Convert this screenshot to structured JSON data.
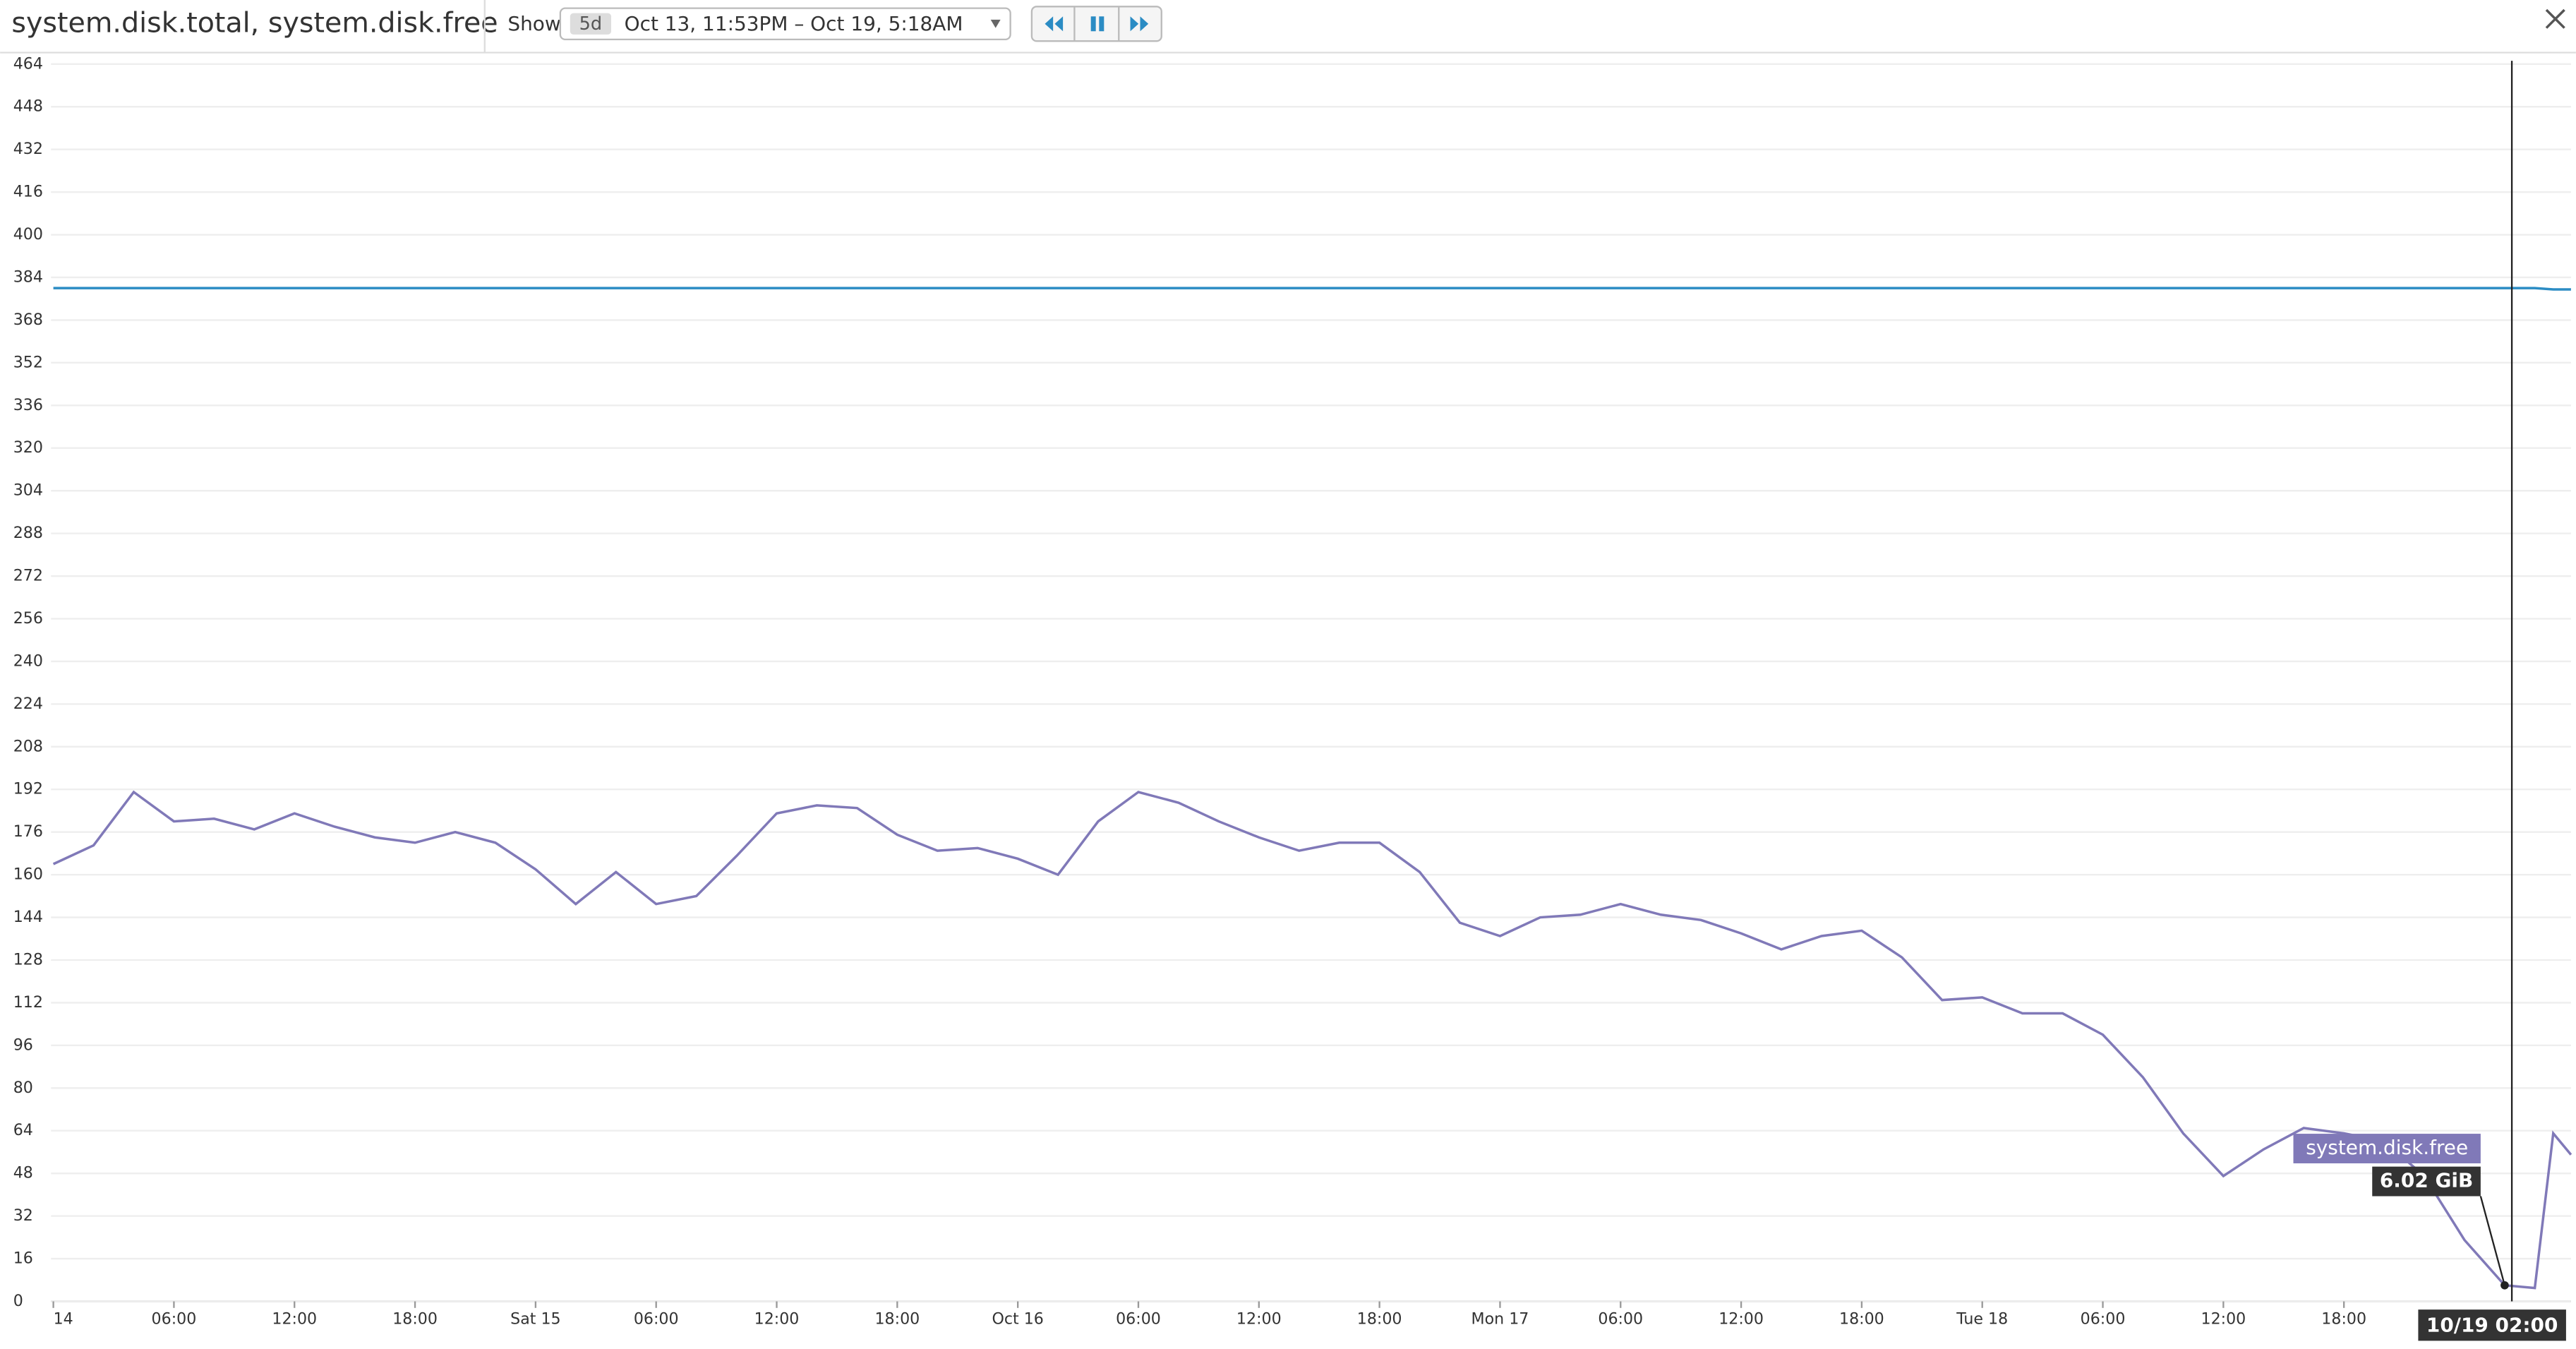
{
  "header": {
    "title": "system.disk.total, system.disk.free",
    "show_label": "Show",
    "range_badge": "5d",
    "range": "Oct 13, 11:53PM – Oct 19, 5:18AM"
  },
  "chart_data": {
    "type": "line",
    "x": [
      "10/14 00:00",
      "10/14 02:00",
      "10/14 04:00",
      "10/14 06:00",
      "10/14 08:00",
      "10/14 10:00",
      "10/14 12:00",
      "10/14 14:00",
      "10/14 16:00",
      "10/14 18:00",
      "10/14 20:00",
      "10/14 22:00",
      "10/15 00:00",
      "10/15 02:00",
      "10/15 04:00",
      "10/15 06:00",
      "10/15 08:00",
      "10/15 10:00",
      "10/15 12:00",
      "10/15 14:00",
      "10/15 16:00",
      "10/15 18:00",
      "10/15 20:00",
      "10/15 22:00",
      "10/16 00:00",
      "10/16 02:00",
      "10/16 04:00",
      "10/16 06:00",
      "10/16 08:00",
      "10/16 10:00",
      "10/16 12:00",
      "10/16 14:00",
      "10/16 16:00",
      "10/16 18:00",
      "10/16 20:00",
      "10/16 22:00",
      "10/17 00:00",
      "10/17 02:00",
      "10/17 04:00",
      "10/17 06:00",
      "10/17 08:00",
      "10/17 10:00",
      "10/17 12:00",
      "10/17 14:00",
      "10/17 16:00",
      "10/17 18:00",
      "10/17 20:00",
      "10/17 22:00",
      "10/18 00:00",
      "10/18 02:00",
      "10/18 04:00",
      "10/18 06:00",
      "10/18 08:00",
      "10/18 10:00",
      "10/18 12:00",
      "10/18 14:00",
      "10/18 16:00",
      "10/18 18:00",
      "10/18 20:00",
      "10/18 22:00",
      "10/19 00:00",
      "10/19 02:00",
      "10/19 03:30",
      "10/19 04:25",
      "10/19 05:18"
    ],
    "series": [
      {
        "name": "system.disk.total",
        "color": "#2b8cc4",
        "values": [
          380,
          380,
          380,
          380,
          380,
          380,
          380,
          380,
          380,
          380,
          380,
          380,
          380,
          380,
          380,
          380,
          380,
          380,
          380,
          380,
          380,
          380,
          380,
          380,
          380,
          380,
          380,
          380,
          380,
          380,
          380,
          380,
          380,
          380,
          380,
          380,
          380,
          380,
          380,
          380,
          380,
          380,
          380,
          380,
          380,
          380,
          380,
          380,
          380,
          380,
          380,
          380,
          380,
          380,
          380,
          380,
          380,
          380,
          380,
          380,
          380,
          380,
          380,
          379.5,
          379.5
        ]
      },
      {
        "name": "system.disk.free",
        "color": "#8079b8",
        "values": [
          164,
          171,
          191,
          180,
          181,
          177,
          183,
          178,
          174,
          172,
          176,
          172,
          162,
          149,
          161,
          149,
          152,
          167,
          183,
          186,
          185,
          175,
          169,
          170,
          166,
          160,
          180,
          191,
          187,
          180,
          174,
          169,
          172,
          172,
          161,
          142,
          137,
          144,
          145,
          149,
          145,
          143,
          138,
          132,
          137,
          139,
          129,
          113,
          114,
          108,
          108,
          100,
          84,
          63,
          47,
          57,
          65,
          63,
          60,
          47,
          23,
          6.02,
          5,
          63,
          55
        ]
      }
    ],
    "xlim": [
      "10/13 23:53",
      "10/19 05:18"
    ],
    "xticks": [
      {
        "value": "10/14 00:00",
        "label": "14"
      },
      {
        "value": "10/14 06:00",
        "label": "06:00"
      },
      {
        "value": "10/14 12:00",
        "label": "12:00"
      },
      {
        "value": "10/14 18:00",
        "label": "18:00"
      },
      {
        "value": "10/15 00:00",
        "label": "Sat 15"
      },
      {
        "value": "10/15 06:00",
        "label": "06:00"
      },
      {
        "value": "10/15 12:00",
        "label": "12:00"
      },
      {
        "value": "10/15 18:00",
        "label": "18:00"
      },
      {
        "value": "10/16 00:00",
        "label": "Oct 16"
      },
      {
        "value": "10/16 06:00",
        "label": "06:00"
      },
      {
        "value": "10/16 12:00",
        "label": "12:00"
      },
      {
        "value": "10/16 18:00",
        "label": "18:00"
      },
      {
        "value": "10/17 00:00",
        "label": "Mon 17"
      },
      {
        "value": "10/17 06:00",
        "label": "06:00"
      },
      {
        "value": "10/17 12:00",
        "label": "12:00"
      },
      {
        "value": "10/17 18:00",
        "label": "18:00"
      },
      {
        "value": "10/18 00:00",
        "label": "Tue 18"
      },
      {
        "value": "10/18 06:00",
        "label": "06:00"
      },
      {
        "value": "10/18 12:00",
        "label": "12:00"
      },
      {
        "value": "10/18 18:00",
        "label": "18:00"
      }
    ],
    "ylim": [
      0,
      464
    ],
    "yticks": [
      0,
      16,
      32,
      48,
      64,
      80,
      96,
      112,
      128,
      144,
      160,
      176,
      192,
      208,
      224,
      240,
      256,
      272,
      288,
      304,
      320,
      336,
      352,
      368,
      384,
      400,
      416,
      432,
      448,
      464
    ],
    "grid": true,
    "tooltip": {
      "x": "10/19 02:00",
      "value": 6.02,
      "value_label": "6.02 GiB"
    }
  }
}
